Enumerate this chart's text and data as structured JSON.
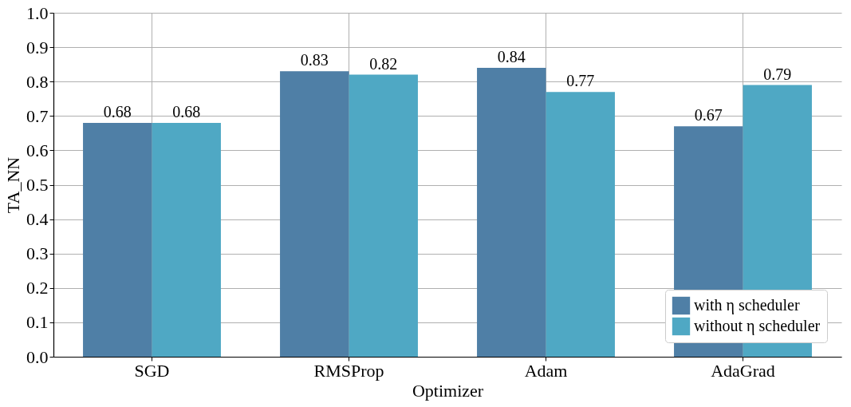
{
  "chart_data": {
    "type": "bar",
    "xlabel": "Optimizer",
    "ylabel": "TA_NN",
    "categories": [
      "SGD",
      "RMSProp",
      "Adam",
      "AdaGrad"
    ],
    "series": [
      {
        "name": "with η scheduler",
        "color": "#4f7fa6",
        "values": [
          0.68,
          0.83,
          0.84,
          0.67
        ]
      },
      {
        "name": "without η scheduler",
        "color": "#4fa8c4",
        "values": [
          0.68,
          0.82,
          0.77,
          0.79
        ]
      }
    ],
    "ylim": [
      0,
      1
    ],
    "yticks": [
      {
        "value": 0,
        "label": "0.0"
      },
      0.1,
      0.2,
      0.3,
      0.4,
      0.5,
      0.6,
      0.7,
      0.8,
      0.9,
      {
        "value": 1,
        "label": "1.0"
      }
    ],
    "grid": true,
    "legend": "bottom right",
    "data_labels": true
  }
}
